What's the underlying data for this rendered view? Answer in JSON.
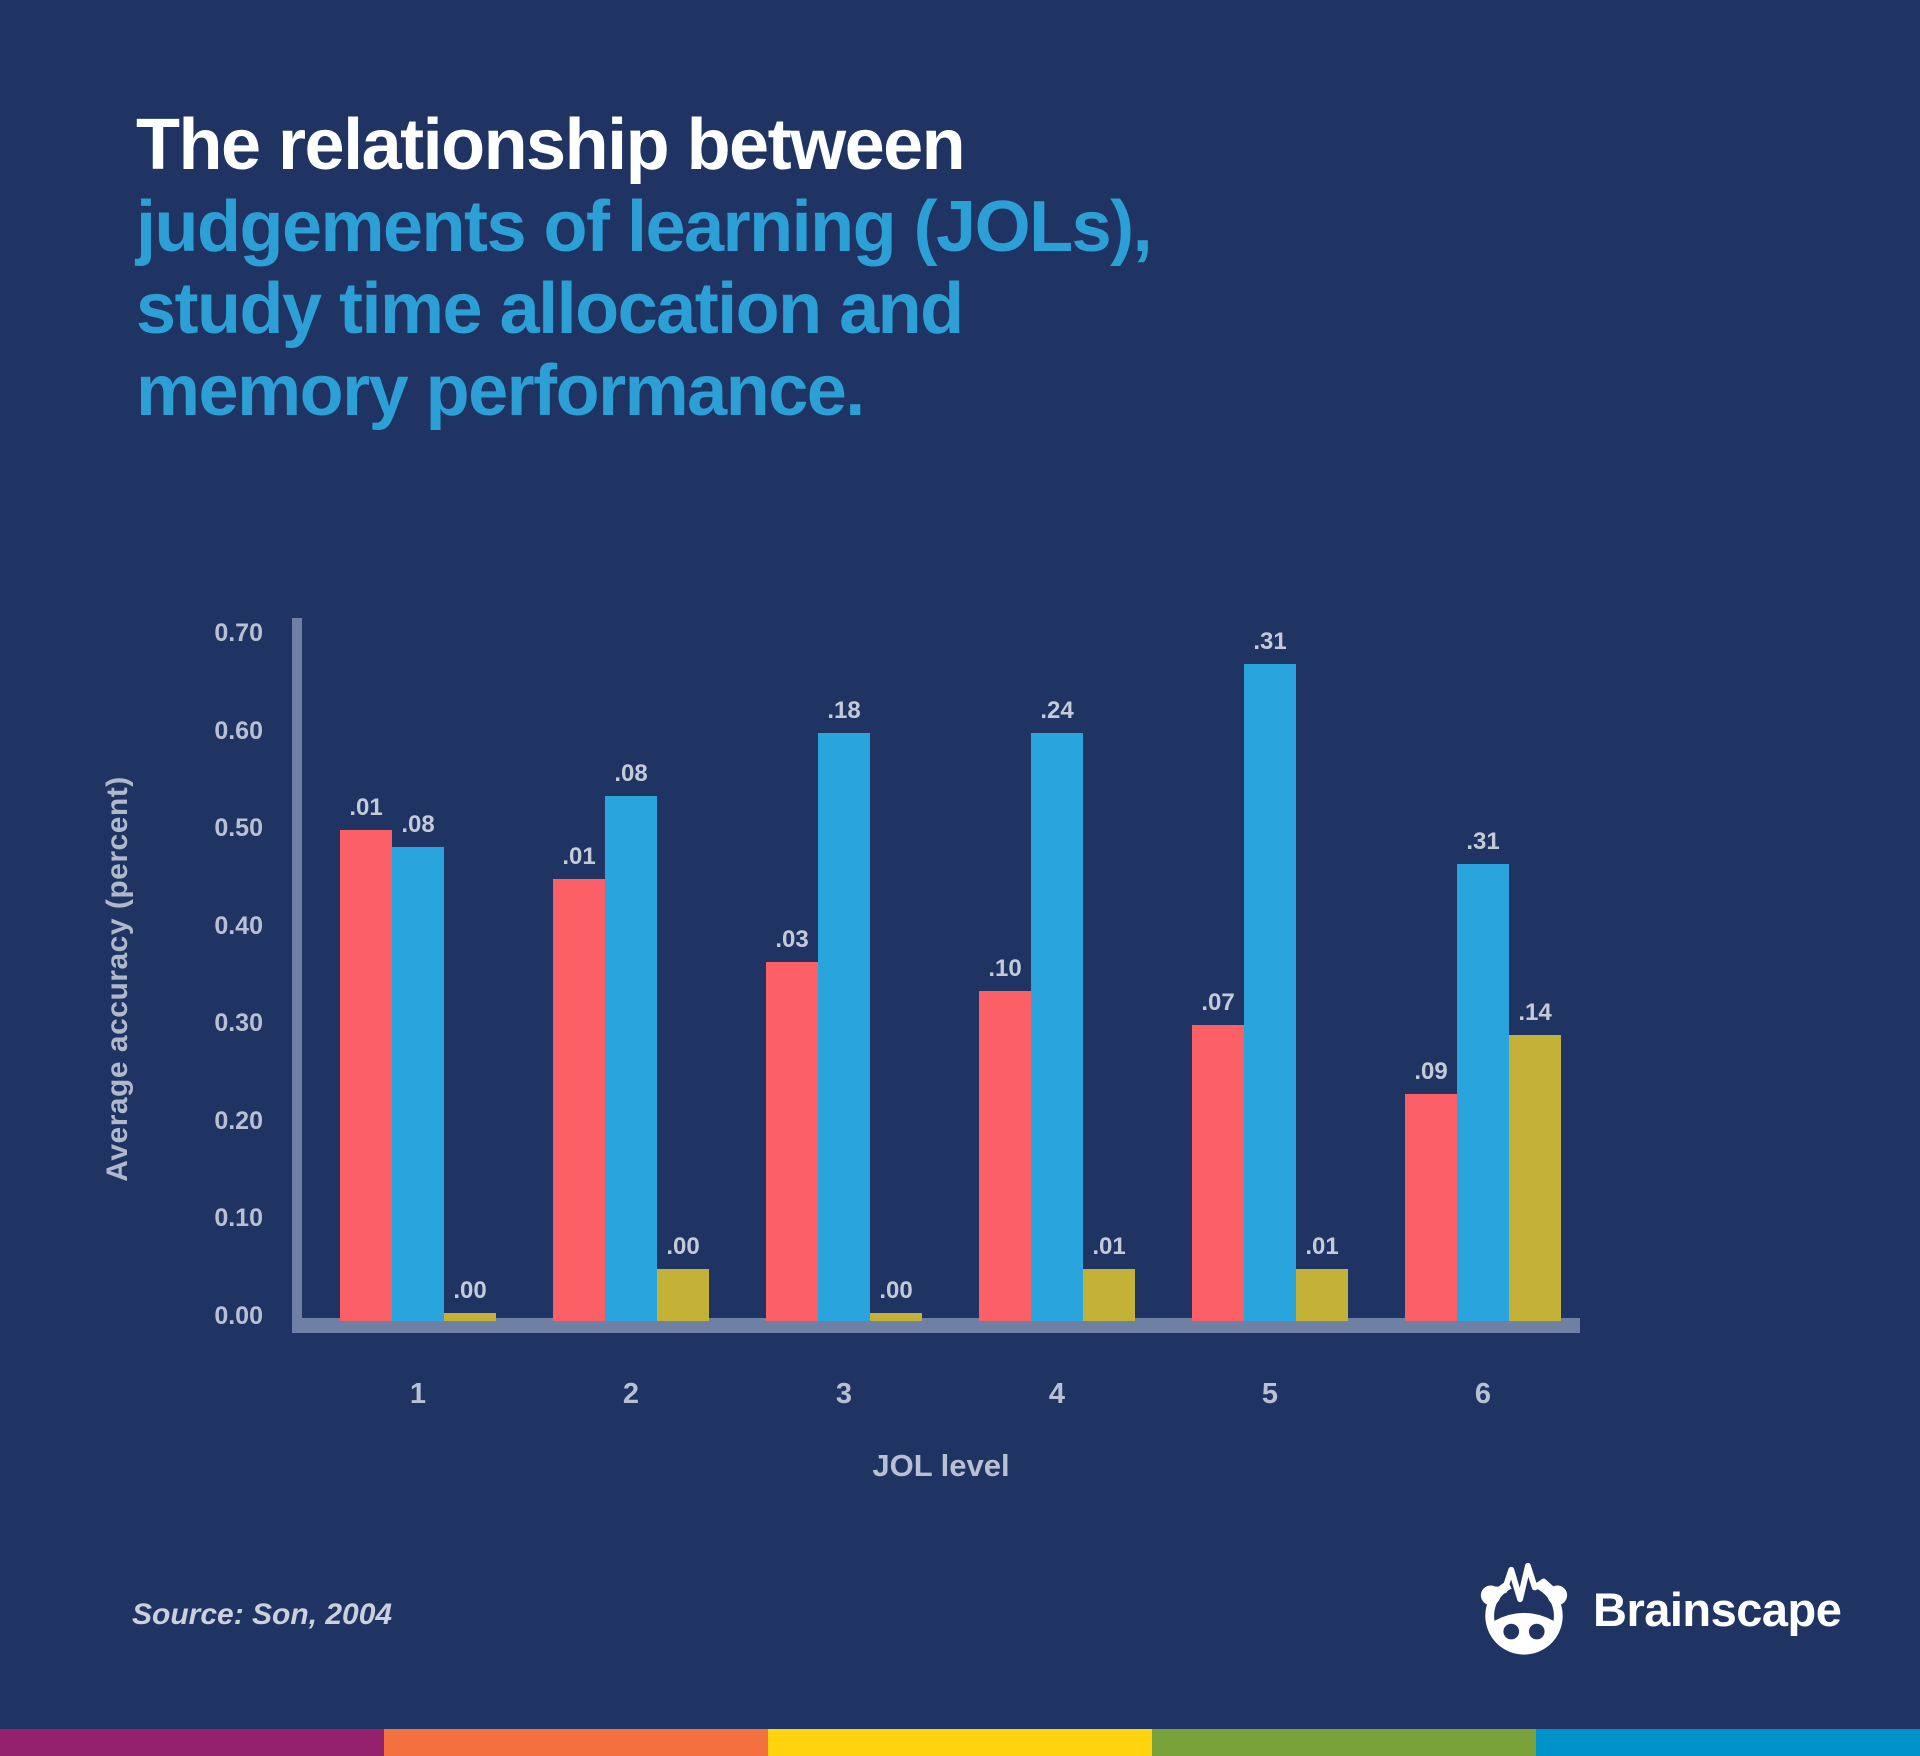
{
  "title": {
    "line1": "The relationship between",
    "line2": "judgements of learning (JOLs),",
    "line3": "study time allocation and",
    "line4": "memory performance."
  },
  "chart_data": {
    "type": "bar",
    "title": "The relationship between judgements of learning (JOLs), study time allocation and memory performance.",
    "xlabel": "JOL level",
    "ylabel": "Average accuracy (percent)",
    "categories": [
      "1",
      "2",
      "3",
      "4",
      "5",
      "6"
    ],
    "yticks": [
      "0.00",
      "0.10",
      "0.20",
      "0.30",
      "0.40",
      "0.50",
      "0.60",
      "0.70"
    ],
    "ylim": [
      0,
      0.7
    ],
    "grid": false,
    "legend_position": "none",
    "series": [
      {
        "name": "red",
        "color": "#fb6066",
        "values": [
          0.5,
          0.45,
          0.365,
          0.335,
          0.3,
          0.23
        ],
        "labels": [
          ".01",
          ".01",
          ".03",
          ".10",
          ".07",
          ".09"
        ]
      },
      {
        "name": "blue",
        "color": "#29a4dc",
        "values": [
          0.483,
          0.535,
          0.6,
          0.6,
          0.67,
          0.465
        ],
        "labels": [
          ".08",
          ".08",
          ".18",
          ".24",
          ".31",
          ".31"
        ]
      },
      {
        "name": "yellow",
        "color": "#c3b237",
        "values": [
          0.005,
          0.05,
          0.005,
          0.05,
          0.05,
          0.29
        ],
        "labels": [
          ".00",
          ".00",
          ".00",
          ".01",
          ".01",
          ".14"
        ]
      }
    ]
  },
  "source": "Source: Son, 2004",
  "logo": {
    "text": "Brainscape"
  },
  "colors": {
    "background": "#203463",
    "title_white": "#ffffff",
    "title_blue": "#2c9fd6",
    "axis": "#6e80a3",
    "tick_text": "#b7c1d3",
    "value_text": "#c3cbd9"
  },
  "footer_stripe_colors": [
    "#93216e",
    "#f4703f",
    "#ffd40e",
    "#79a33a",
    "#0093c9"
  ]
}
